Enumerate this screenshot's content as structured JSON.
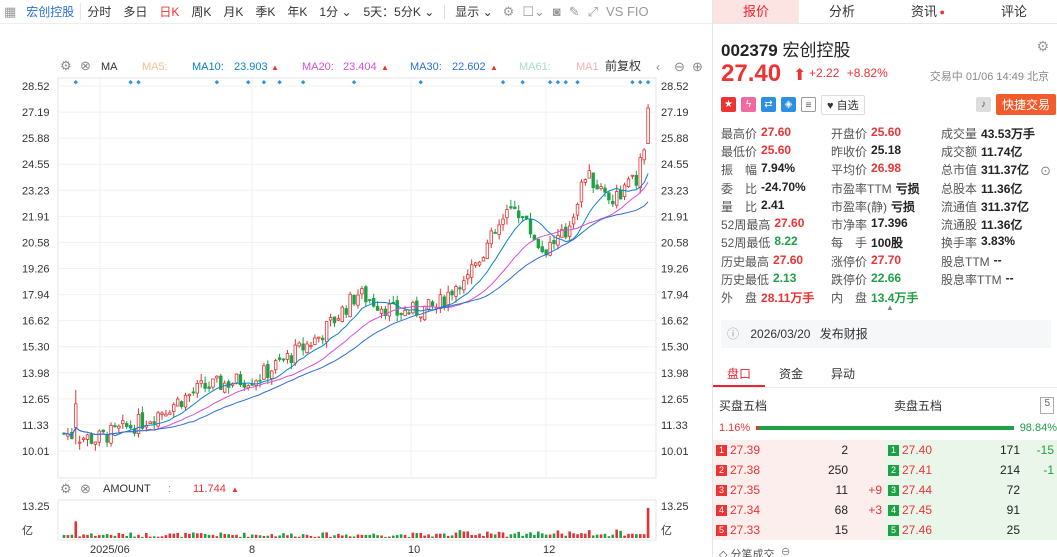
{
  "toolbar": {
    "stock_name": "宏创控股",
    "periods": [
      "分时",
      "多日",
      "日K",
      "周K",
      "月K",
      "季K",
      "年K",
      "1分",
      "5天：5分K"
    ],
    "active_period": "日K",
    "display": "显示",
    "extra": "VS FIO"
  },
  "ma": {
    "label": "MA",
    "ma5": "MA5:",
    "ma10": "MA10:",
    "ma10_val": "23.903",
    "ma20": "MA20:",
    "ma20_val": "23.404",
    "ma30": "MA30:",
    "ma30_val": "22.602",
    "ma61": "MA61:",
    "ma1": "MA1",
    "adjust": "前复权"
  },
  "colors": {
    "up": "#e33333",
    "down": "#1ea045",
    "ma10": "#0a85c8",
    "ma20": "#d84fd8",
    "ma30": "#2c6fd8",
    "ma5": "#f6a04d",
    "ma61": "#8fd6b0"
  },
  "chart_data": {
    "type": "candlestick",
    "yticks": [
      "28.52",
      "27.19",
      "25.88",
      "24.55",
      "23.23",
      "21.91",
      "20.58",
      "19.26",
      "17.94",
      "16.62",
      "15.30",
      "13.98",
      "12.65",
      "11.33",
      "10.01"
    ],
    "ylim": [
      10.01,
      28.52
    ],
    "xlabels": [
      "2025/06",
      "8",
      "10",
      "12"
    ],
    "start_close": 10.9,
    "end_close": 27.4,
    "amount_label": "AMOUNT",
    "amount_value": "11.744",
    "amount_axis": "13.25",
    "amount_unit": "亿"
  },
  "quote": {
    "tabs": [
      "报价",
      "分析",
      "资讯",
      "评论"
    ],
    "code": "002379",
    "name": "宏创控股",
    "price": "27.40",
    "arrow": "⬆",
    "change": "+2.22",
    "pct": "+8.82%",
    "time": "交易中 01/06 14:49 北京",
    "watch": "自选",
    "trade": "快捷交易"
  },
  "stats": [
    [
      {
        "l": "最高价",
        "v": "27.60",
        "c": "red"
      },
      {
        "l": "开盘价",
        "v": "25.60",
        "c": "red"
      },
      {
        "l": "成交量",
        "v": "43.53万手",
        "c": "dk"
      }
    ],
    [
      {
        "l": "最低价",
        "v": "25.60",
        "c": "red"
      },
      {
        "l": "昨收价",
        "v": "25.18",
        "c": "dk"
      },
      {
        "l": "成交额",
        "v": "11.74亿",
        "c": "dk"
      }
    ],
    [
      {
        "l": "振　幅",
        "v": "7.94%",
        "c": "dk"
      },
      {
        "l": "平均价",
        "v": "26.98",
        "c": "red"
      },
      {
        "l": "总市值",
        "v": "311.37亿",
        "c": "dk"
      }
    ],
    [
      {
        "l": "委　比",
        "v": "-24.70%",
        "c": "dk"
      },
      {
        "l": "市盈率TTM",
        "v": "亏损",
        "c": "dk"
      },
      {
        "l": "总股本",
        "v": "11.36亿",
        "c": "dk"
      }
    ],
    [
      {
        "l": "量　比",
        "v": "2.41",
        "c": "dk"
      },
      {
        "l": "市盈率(静)",
        "v": "亏损",
        "c": "dk"
      },
      {
        "l": "流通值",
        "v": "311.37亿",
        "c": "dk"
      }
    ],
    [
      {
        "l": "52周最高",
        "v": "27.60",
        "c": "red"
      },
      {
        "l": "市净率",
        "v": "17.396",
        "c": "dk"
      },
      {
        "l": "流通股",
        "v": "11.36亿",
        "c": "dk"
      }
    ],
    [
      {
        "l": "52周最低",
        "v": "8.22",
        "c": "green"
      },
      {
        "l": "每　手",
        "v": "100股",
        "c": "dk"
      },
      {
        "l": "换手率",
        "v": "3.83%",
        "c": "dk"
      }
    ],
    [
      {
        "l": "历史最高",
        "v": "27.60",
        "c": "red"
      },
      {
        "l": "涨停价",
        "v": "27.70",
        "c": "red"
      },
      {
        "l": "股息TTM",
        "v": "--",
        "c": "dk"
      }
    ],
    [
      {
        "l": "历史最低",
        "v": "2.13",
        "c": "green"
      },
      {
        "l": "跌停价",
        "v": "22.66",
        "c": "green"
      },
      {
        "l": "股息率TTM",
        "v": "--",
        "c": "dk"
      }
    ],
    [
      {
        "l": "外　盘",
        "v": "28.11万手",
        "c": "red"
      },
      {
        "l": "内　盘",
        "v": "13.4万手",
        "c": "green"
      },
      {
        "l": "",
        "v": "",
        "c": "dk"
      }
    ]
  ],
  "notice": {
    "date": "2026/03/20",
    "text": "发布财报"
  },
  "subtabs": [
    "盘口",
    "资金",
    "异动"
  ],
  "orderbook": {
    "buy_title": "买盘五档",
    "sell_title": "卖盘五档",
    "levels": "5",
    "buy_pct": "1.16%",
    "sell_pct": "98.84%",
    "buy_frac": 0.0116,
    "buy": [
      [
        "1",
        "27.39",
        "2",
        ""
      ],
      [
        "2",
        "27.38",
        "250",
        ""
      ],
      [
        "3",
        "27.35",
        "11",
        "+9"
      ],
      [
        "4",
        "27.34",
        "68",
        "+3"
      ],
      [
        "5",
        "27.33",
        "15",
        ""
      ]
    ],
    "sell": [
      [
        "1",
        "27.40",
        "171",
        "-15"
      ],
      [
        "2",
        "27.41",
        "214",
        "-1"
      ],
      [
        "3",
        "27.44",
        "72",
        ""
      ],
      [
        "4",
        "27.45",
        "91",
        ""
      ],
      [
        "5",
        "27.46",
        "25",
        ""
      ]
    ]
  },
  "footer": "分笔成交"
}
